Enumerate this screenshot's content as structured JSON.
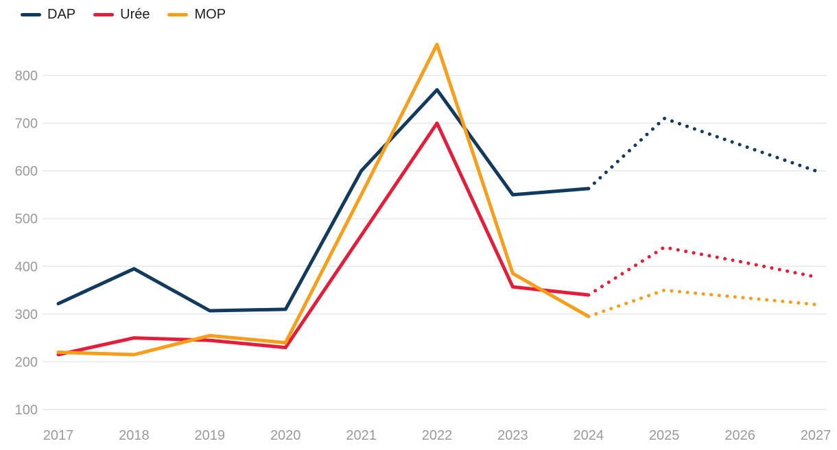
{
  "legend": {
    "items": [
      {
        "label": "DAP"
      },
      {
        "label": "Urée"
      },
      {
        "label": "MOP"
      }
    ]
  },
  "colors": {
    "dap": "#123a5e",
    "uree": "#e41e3a",
    "mop": "#f99e1b",
    "gridline": "#ececec",
    "axis_text": "#9a9a9a",
    "legend_text": "#1d1d1b",
    "background": "#ffffff"
  },
  "chart_data": {
    "type": "line",
    "x": [
      2017,
      2018,
      2019,
      2020,
      2021,
      2022,
      2023,
      2024,
      2025,
      2026,
      2027
    ],
    "series": [
      {
        "name": "DAP",
        "color": "#123a5e",
        "values": [
          322,
          395,
          307,
          310,
          600,
          770,
          550,
          563,
          710,
          655,
          600
        ]
      },
      {
        "name": "Urée",
        "color": "#e41e3a",
        "values": [
          215,
          250,
          245,
          230,
          465,
          700,
          357,
          340,
          440,
          410,
          378
        ]
      },
      {
        "name": "MOP",
        "color": "#f99e1b",
        "values": [
          220,
          215,
          255,
          240,
          550,
          865,
          385,
          295,
          350,
          335,
          320
        ]
      }
    ],
    "forecast_from_index": 7,
    "forecast_style": "dotted",
    "title": "",
    "xlabel": "",
    "ylabel": "",
    "ylim": [
      100,
      800
    ],
    "y_ticks": [
      100,
      200,
      300,
      400,
      500,
      600,
      700,
      800
    ],
    "x_tick_labels": [
      "2017",
      "2018",
      "2019",
      "2020",
      "2021",
      "2022",
      "2023",
      "2024",
      "2025",
      "2026",
      "2027"
    ],
    "grid": "horizontal",
    "legend_position": "top-left"
  }
}
